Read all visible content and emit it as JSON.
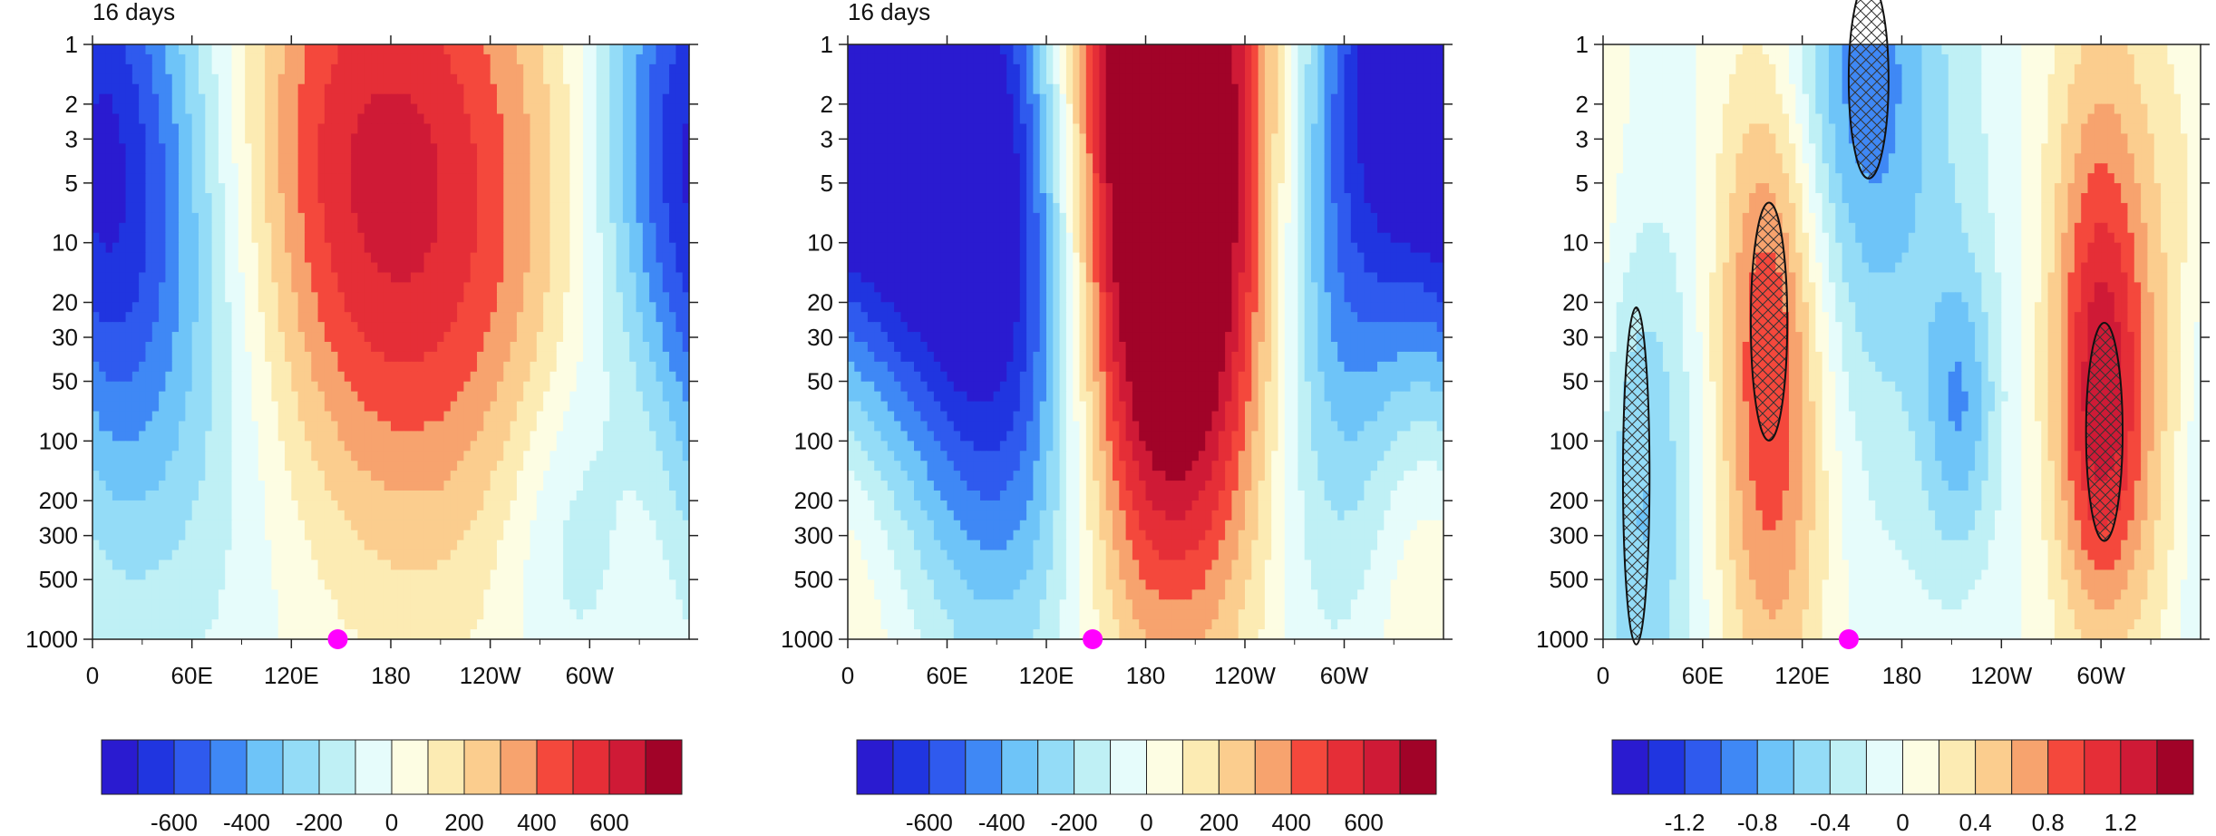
{
  "chart_data": [
    {
      "type": "heatmap",
      "title": "16 days",
      "x_ticks": [
        "0",
        "60E",
        "120E",
        "180",
        "120W",
        "60W"
      ],
      "x_tick_lons": [
        0,
        60,
        120,
        180,
        240,
        300
      ],
      "y_ticks": [
        "1",
        "2",
        "3",
        "5",
        "10",
        "20",
        "30",
        "50",
        "100",
        "200",
        "300",
        "500",
        "1000"
      ],
      "y_tick_values": [
        1,
        2,
        3,
        5,
        10,
        20,
        30,
        50,
        100,
        200,
        300,
        500,
        1000
      ],
      "y_scale": "log",
      "y_direction": "pressure-decreasing-upward",
      "xlim": [
        0,
        360
      ],
      "ylim": [
        1000,
        1
      ],
      "marker": {
        "lon": 148,
        "p": 1000,
        "color": "#ff00ff"
      },
      "features": [
        {
          "lon": 30,
          "p": 6,
          "value": -450,
          "slon": 55,
          "slp": 1.2
        },
        {
          "lon": 190,
          "p": 7,
          "value": 550,
          "slon": 75,
          "slp": 1.3
        },
        {
          "lon": 130,
          "p": 3,
          "value": 200,
          "slon": 60,
          "slp": 1.0
        },
        {
          "lon": 355,
          "p": 3,
          "value": -380,
          "slon": 35,
          "slp": 1.1
        },
        {
          "lon": 285,
          "p": 300,
          "value": -180,
          "slon": 30,
          "slp": 0.6
        },
        {
          "lon": 335,
          "p": 120,
          "value": 120,
          "slon": 20,
          "slp": 0.8
        },
        {
          "lon": 80,
          "p": 60,
          "value": -120,
          "slon": 60,
          "slp": 1.3
        }
      ],
      "colorbar": {
        "levels": [
          -700,
          -600,
          -500,
          -400,
          -300,
          -200,
          -100,
          0,
          100,
          200,
          300,
          400,
          500,
          600,
          700
        ],
        "labels": [
          "-600",
          "-400",
          "-200",
          "0",
          "200",
          "400",
          "600"
        ],
        "label_values": [
          -600,
          -400,
          -200,
          0,
          200,
          400,
          600
        ]
      }
    },
    {
      "type": "heatmap",
      "title": "16 days",
      "x_ticks": [
        "0",
        "60E",
        "120E",
        "180",
        "120W",
        "60W"
      ],
      "x_tick_lons": [
        0,
        60,
        120,
        180,
        240,
        300
      ],
      "y_ticks": [
        "1",
        "2",
        "3",
        "5",
        "10",
        "20",
        "30",
        "50",
        "100",
        "200",
        "300",
        "500",
        "1000"
      ],
      "y_tick_values": [
        1,
        2,
        3,
        5,
        10,
        20,
        30,
        50,
        100,
        200,
        300,
        500,
        1000
      ],
      "y_scale": "log",
      "xlim": [
        0,
        360
      ],
      "ylim": [
        1000,
        1
      ],
      "marker": {
        "lon": 148,
        "p": 1000,
        "color": "#ff00ff"
      },
      "features": [
        {
          "lon": 65,
          "p": 3,
          "value": -900,
          "slon": 55,
          "slp": 1.4
        },
        {
          "lon": 110,
          "p": 30,
          "value": -350,
          "slon": 35,
          "slp": 1.2
        },
        {
          "lon": 185,
          "p": 2,
          "value": 1100,
          "slon": 50,
          "slp": 1.5
        },
        {
          "lon": 200,
          "p": 40,
          "value": 300,
          "slon": 35,
          "slp": 1.1
        },
        {
          "lon": 340,
          "p": 1,
          "value": -700,
          "slon": 40,
          "slp": 1.2
        },
        {
          "lon": 290,
          "p": 20,
          "value": -300,
          "slon": 30,
          "slp": 1.2
        },
        {
          "lon": 15,
          "p": 250,
          "value": 160,
          "slon": 35,
          "slp": 0.9
        },
        {
          "lon": 345,
          "p": 150,
          "value": 140,
          "slon": 25,
          "slp": 1.0
        }
      ],
      "colorbar": {
        "levels": [
          -700,
          -600,
          -500,
          -400,
          -300,
          -200,
          -100,
          0,
          100,
          200,
          300,
          400,
          500,
          600,
          700
        ],
        "labels": [
          "-600",
          "-400",
          "-200",
          "0",
          "200",
          "400",
          "600"
        ],
        "label_values": [
          -600,
          -400,
          -200,
          0,
          200,
          400,
          600
        ]
      }
    },
    {
      "type": "heatmap",
      "title": "",
      "x_ticks": [
        "0",
        "60E",
        "120E",
        "180",
        "120W",
        "60W"
      ],
      "x_tick_lons": [
        0,
        60,
        120,
        180,
        240,
        300
      ],
      "y_ticks": [
        "1",
        "2",
        "3",
        "5",
        "10",
        "20",
        "30",
        "50",
        "100",
        "200",
        "300",
        "500",
        "1000"
      ],
      "y_tick_values": [
        1,
        2,
        3,
        5,
        10,
        20,
        30,
        50,
        100,
        200,
        300,
        500,
        1000
      ],
      "y_scale": "log",
      "xlim": [
        0,
        360
      ],
      "ylim": [
        1000,
        1
      ],
      "marker": {
        "lon": 148,
        "p": 1000,
        "color": "#ff00ff"
      },
      "features": [
        {
          "lon": 20,
          "p": 150,
          "value": -0.7,
          "slon": 25,
          "slp": 1.3
        },
        {
          "lon": 100,
          "p": 25,
          "value": 0.8,
          "slon": 22,
          "slp": 1.0
        },
        {
          "lon": 105,
          "p": 300,
          "value": 0.4,
          "slon": 25,
          "slp": 1.2
        },
        {
          "lon": 155,
          "p": 1,
          "value": -0.7,
          "slon": 30,
          "slp": 0.9
        },
        {
          "lon": 180,
          "p": 10,
          "value": -0.35,
          "slon": 45,
          "slp": 1.4
        },
        {
          "lon": 215,
          "p": 70,
          "value": -0.6,
          "slon": 15,
          "slp": 0.5
        },
        {
          "lon": 300,
          "p": 80,
          "value": 1.1,
          "slon": 20,
          "slp": 0.8
        },
        {
          "lon": 300,
          "p": 5,
          "value": 0.5,
          "slon": 25,
          "slp": 1.0
        },
        {
          "lon": 345,
          "p": 200,
          "value": 0.3,
          "slon": 20,
          "slp": 0.9
        },
        {
          "lon": 5,
          "p": 6,
          "value": 0.3,
          "slon": 25,
          "slp": 0.8
        }
      ],
      "hatch_regions": [
        {
          "lon": 20,
          "p": 150,
          "rlon": 8,
          "rlp": 0.85
        },
        {
          "lon": 100,
          "p": 25,
          "rlon": 11,
          "rlp": 0.6
        },
        {
          "lon": 302,
          "p": 90,
          "rlon": 11,
          "rlp": 0.55
        },
        {
          "lon": 160,
          "p": 1.5,
          "rlon": 12,
          "rlp": 0.5
        }
      ],
      "colorbar": {
        "levels": [
          -1.4,
          -1.2,
          -1.0,
          -0.8,
          -0.6,
          -0.4,
          -0.2,
          0,
          0.2,
          0.4,
          0.6,
          0.8,
          1.0,
          1.2,
          1.4
        ],
        "labels": [
          "-1.2",
          "-0.8",
          "-0.4",
          "0",
          "0.4",
          "0.8",
          "1.2"
        ],
        "label_values": [
          -1.2,
          -0.8,
          -0.4,
          0,
          0.4,
          0.8,
          1.2
        ]
      }
    }
  ],
  "colors": {
    "palette": [
      "#2a1bd0",
      "#2035e0",
      "#2f5aee",
      "#3f88f5",
      "#6ec4f8",
      "#94dcf7",
      "#bff0f5",
      "#e6fcfb",
      "#fdfde3",
      "#fcebb3",
      "#fbcd8e",
      "#f7a36e",
      "#f4483c",
      "#e52e37",
      "#cf1a36",
      "#a10328"
    ],
    "marker": "#ff00ff",
    "axis": "#222222"
  }
}
